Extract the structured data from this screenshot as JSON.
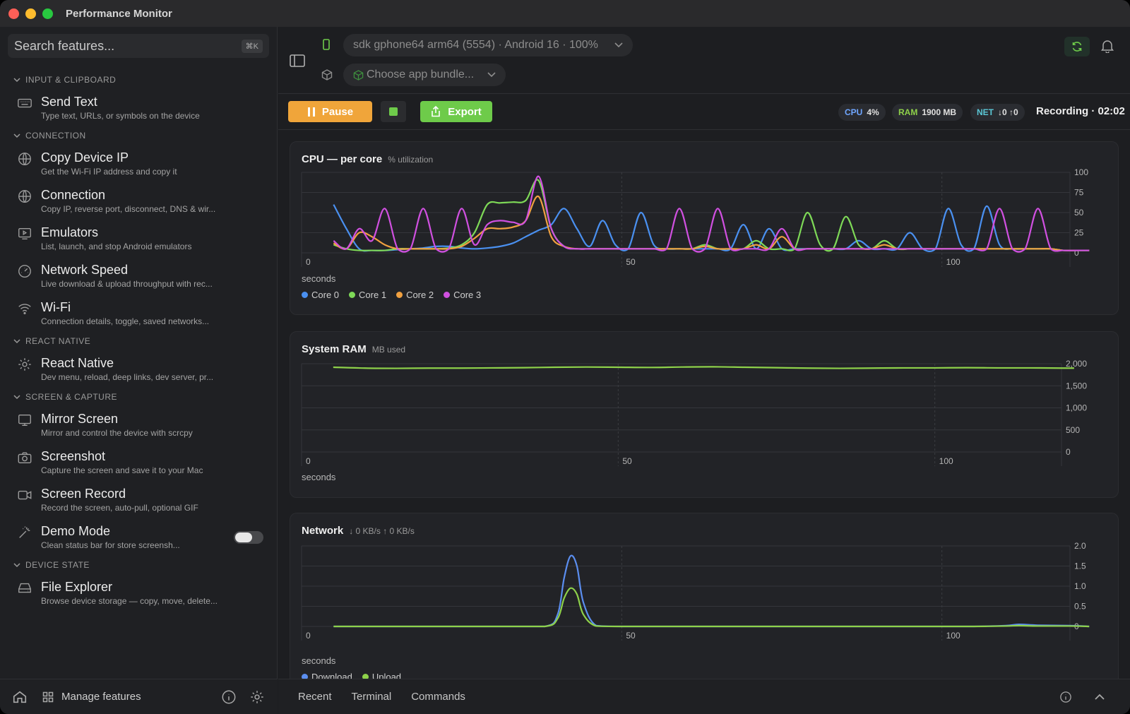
{
  "app": {
    "title": "Performance Monitor"
  },
  "sidebar": {
    "search_placeholder": "Search features...",
    "search_shortcut": "⌘K",
    "sections": [
      {
        "title": "INPUT & CLIPBOARD",
        "items": [
          {
            "title": "Send Text",
            "desc": "Type text, URLs, or symbols on the device",
            "icon": "keyboard-icon"
          }
        ]
      },
      {
        "title": "CONNECTION",
        "items": [
          {
            "title": "Copy Device IP",
            "desc": "Get the Wi-Fi IP address and copy it",
            "icon": "globe-icon"
          },
          {
            "title": "Connection",
            "desc": "Copy IP, reverse port, disconnect, DNS & wir...",
            "icon": "network-icon"
          },
          {
            "title": "Emulators",
            "desc": "List, launch, and stop Android emulators",
            "icon": "monitor-play-icon"
          },
          {
            "title": "Network Speed",
            "desc": "Live download & upload throughput with rec...",
            "icon": "gauge-icon"
          },
          {
            "title": "Wi-Fi",
            "desc": "Connection details, toggle, saved networks...",
            "icon": "wifi-icon"
          }
        ]
      },
      {
        "title": "REACT NATIVE",
        "items": [
          {
            "title": "React Native",
            "desc": "Dev menu, reload, deep links, dev server, pr...",
            "icon": "gear-icon"
          }
        ]
      },
      {
        "title": "SCREEN & CAPTURE",
        "items": [
          {
            "title": "Mirror Screen",
            "desc": "Mirror and control the device with scrcpy",
            "icon": "monitor-icon"
          },
          {
            "title": "Screenshot",
            "desc": "Capture the screen and save it to your Mac",
            "icon": "camera-icon"
          },
          {
            "title": "Screen Record",
            "desc": "Record the screen, auto-pull, optional GIF",
            "icon": "video-icon"
          },
          {
            "title": "Demo Mode",
            "desc": "Clean status bar for store screensh...",
            "icon": "wand-icon",
            "toggle": true
          }
        ]
      },
      {
        "title": "DEVICE STATE",
        "items": [
          {
            "title": "File Explorer",
            "desc": "Browse device storage — copy, move, delete...",
            "icon": "drive-icon"
          }
        ]
      }
    ],
    "footer": {
      "manage_label": "Manage features"
    }
  },
  "topbar": {
    "device": "sdk gphone64 arm64 (5554) · Android 16 · 100%",
    "bundle_placeholder": "Choose app bundle..."
  },
  "toolbar": {
    "pause_label": "Pause",
    "export_label": "Export",
    "cpu_key": "CPU",
    "cpu_val": "4%",
    "ram_key": "RAM",
    "ram_val": "1900 MB",
    "net_key": "NET",
    "net_val": "↓0 ↑0",
    "recording": "Recording · 02:02"
  },
  "colors": {
    "accent_orange": "#f0a53a",
    "accent_green": "#6ecb4a",
    "core0": "#4a90f0",
    "core1": "#7ed957",
    "core2": "#f0a040",
    "core3": "#d050e0",
    "download": "#5b8ef0",
    "upload": "#8ed14a",
    "ram_line": "#8ed14a"
  },
  "charts": {
    "cpu": {
      "title": "CPU — per core",
      "subtitle": "% utilization",
      "xlabel": "seconds",
      "legend": [
        "Core 0",
        "Core 1",
        "Core 2",
        "Core 3"
      ]
    },
    "ram": {
      "title": "System RAM",
      "subtitle": "MB used",
      "xlabel": "seconds"
    },
    "net": {
      "title": "Network",
      "subtitle": "↓ 0 KB/s  ↑ 0 KB/s",
      "xlabel": "seconds",
      "legend": [
        "Download",
        "Upload"
      ]
    }
  },
  "bottombar": {
    "tabs": [
      "Recent",
      "Terminal",
      "Commands"
    ]
  },
  "chart_data": [
    {
      "type": "line",
      "title": "CPU — per core",
      "xlabel": "seconds",
      "ylabel": "% utilization",
      "xlim": [
        0,
        120
      ],
      "ylim": [
        0,
        100
      ],
      "xticks": [
        0,
        50,
        100
      ],
      "yticks": [
        0,
        25,
        50,
        75,
        100
      ],
      "grid": true,
      "legend_position": "bottom-left",
      "x": [
        5,
        7,
        9,
        11,
        13,
        15,
        17,
        19,
        21,
        23,
        25,
        27,
        29,
        31,
        33,
        35,
        37,
        39,
        41,
        43,
        45,
        47,
        49,
        51,
        53,
        55,
        57,
        59,
        61,
        63,
        65,
        67,
        69,
        71,
        73,
        75,
        77,
        79,
        81,
        83,
        85,
        87,
        89,
        91,
        93,
        95,
        97,
        99,
        101,
        103,
        105,
        107,
        109,
        111,
        113,
        115,
        117,
        119,
        121,
        123
      ],
      "series": [
        {
          "name": "Core 0",
          "values": [
            60,
            30,
            5,
            3,
            3,
            4,
            5,
            6,
            8,
            8,
            6,
            5,
            6,
            8,
            12,
            20,
            28,
            35,
            55,
            30,
            8,
            40,
            10,
            5,
            50,
            10,
            5,
            5,
            5,
            5,
            5,
            5,
            35,
            5,
            30,
            5,
            5,
            5,
            5,
            5,
            5,
            15,
            5,
            5,
            5,
            25,
            5,
            5,
            55,
            10,
            5,
            58,
            10,
            5,
            5,
            5,
            5,
            3,
            3,
            3
          ]
        },
        {
          "name": "Core 1",
          "values": [
            10,
            5,
            3,
            3,
            3,
            5,
            5,
            5,
            5,
            6,
            10,
            25,
            60,
            62,
            63,
            65,
            90,
            30,
            8,
            5,
            5,
            5,
            5,
            5,
            5,
            5,
            5,
            5,
            5,
            10,
            5,
            5,
            5,
            15,
            5,
            5,
            5,
            50,
            10,
            5,
            45,
            10,
            5,
            15,
            5,
            5,
            5,
            5,
            5,
            5,
            5,
            5,
            5,
            5,
            5,
            5,
            5,
            3,
            3,
            3
          ]
        },
        {
          "name": "Core 2",
          "values": [
            12,
            5,
            25,
            20,
            10,
            5,
            5,
            5,
            5,
            5,
            8,
            18,
            30,
            30,
            32,
            40,
            70,
            20,
            8,
            5,
            5,
            5,
            5,
            5,
            5,
            5,
            5,
            5,
            5,
            8,
            5,
            5,
            5,
            10,
            5,
            20,
            5,
            5,
            5,
            5,
            5,
            5,
            5,
            10,
            5,
            5,
            5,
            5,
            5,
            5,
            5,
            5,
            5,
            5,
            5,
            5,
            5,
            3,
            3,
            3
          ]
        },
        {
          "name": "Core 3",
          "values": [
            15,
            5,
            30,
            15,
            55,
            5,
            5,
            55,
            5,
            5,
            55,
            10,
            35,
            40,
            38,
            40,
            95,
            30,
            8,
            5,
            5,
            5,
            5,
            5,
            5,
            5,
            5,
            55,
            5,
            5,
            55,
            5,
            5,
            5,
            5,
            30,
            5,
            5,
            5,
            5,
            5,
            5,
            5,
            5,
            5,
            5,
            5,
            5,
            5,
            5,
            5,
            5,
            55,
            5,
            5,
            55,
            5,
            3,
            3,
            3
          ]
        }
      ]
    },
    {
      "type": "line",
      "title": "System RAM",
      "xlabel": "seconds",
      "ylabel": "MB used",
      "xlim": [
        0,
        120
      ],
      "ylim": [
        0,
        2000
      ],
      "xticks": [
        0,
        50,
        100
      ],
      "yticks": [
        0,
        500,
        1000,
        1500,
        2000
      ],
      "grid": true,
      "x": [
        5,
        10,
        15,
        20,
        25,
        30,
        35,
        40,
        45,
        50,
        55,
        60,
        65,
        70,
        75,
        80,
        85,
        90,
        95,
        100,
        105,
        110,
        115,
        120,
        122
      ],
      "series": [
        {
          "name": "",
          "values": [
            1920,
            1900,
            1895,
            1900,
            1900,
            1905,
            1910,
            1920,
            1925,
            1920,
            1915,
            1925,
            1930,
            1920,
            1910,
            1900,
            1895,
            1900,
            1905,
            1905,
            1910,
            1905,
            1905,
            1900,
            1900
          ]
        }
      ]
    },
    {
      "type": "line",
      "title": "Network",
      "xlabel": "seconds",
      "xlim": [
        0,
        120
      ],
      "ylim": [
        0,
        2
      ],
      "xticks": [
        0,
        50,
        100
      ],
      "yticks": [
        0,
        0.5,
        1.0,
        1.5,
        2.0
      ],
      "grid": true,
      "legend_position": "bottom-left",
      "x": [
        5,
        10,
        20,
        30,
        38,
        40,
        41,
        42,
        43,
        44,
        46,
        50,
        60,
        70,
        80,
        90,
        100,
        105,
        110,
        112,
        115,
        120,
        123
      ],
      "series": [
        {
          "name": "Download",
          "values": [
            0,
            0,
            0,
            0,
            0,
            0.3,
            1.2,
            1.75,
            1.5,
            0.6,
            0.02,
            0,
            0,
            0,
            0,
            0,
            0,
            0,
            0.02,
            0.05,
            0.03,
            0.02,
            0
          ]
        },
        {
          "name": "Upload",
          "values": [
            0,
            0,
            0,
            0,
            0,
            0.2,
            0.7,
            0.95,
            0.8,
            0.3,
            0.01,
            0,
            0,
            0,
            0,
            0,
            0,
            0,
            0.01,
            0.02,
            0.01,
            0.01,
            0
          ]
        }
      ]
    }
  ]
}
